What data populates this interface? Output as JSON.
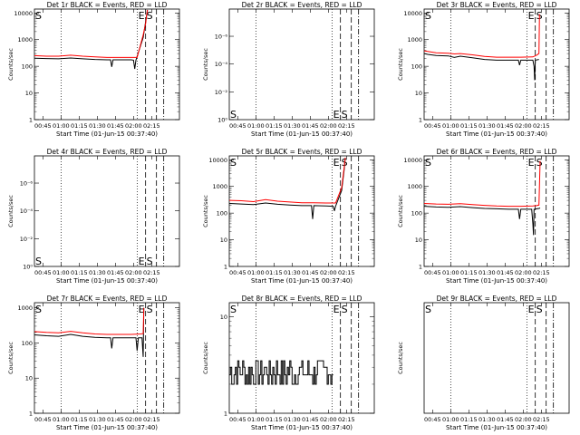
{
  "colors": {
    "events": "#000000",
    "lld": "#ff0000",
    "background": "#ffffff"
  },
  "x_tick_labels": [
    "00:45",
    "01:00",
    "01:15",
    "01:30",
    "01:45",
    "02:00",
    "02:15"
  ],
  "chart_data": [
    {
      "type": "line",
      "title": "Det 1r BLACK = Events, RED = LLD",
      "xlabel": "Start Time (01-Jun-15 00:37:40)",
      "ylabel": "Counts/sec",
      "yscale": "log",
      "ylim": [
        1,
        14000
      ],
      "ytick_labels": [
        "1",
        "10",
        "100",
        "1000",
        "10000"
      ],
      "ytick_values": [
        1,
        10,
        100,
        1000,
        10000
      ],
      "marker_labels": [
        "S",
        "E",
        "S"
      ],
      "label_pos": "top",
      "series": [
        {
          "color": "#000000",
          "x": [
            0,
            10,
            20,
            30,
            40,
            50,
            60,
            63,
            64,
            65,
            70,
            80,
            82,
            83,
            84,
            90,
            93,
            93.5
          ],
          "y": [
            200,
            195,
            190,
            205,
            190,
            180,
            175,
            175,
            95,
            175,
            175,
            175,
            170,
            80,
            170,
            1200,
            9000,
            13000
          ]
        },
        {
          "color": "#ff0000",
          "x": [
            0,
            10,
            20,
            30,
            40,
            50,
            60,
            70,
            80,
            83,
            85,
            90,
            92,
            93,
            93.5
          ],
          "y": [
            250,
            240,
            240,
            260,
            240,
            225,
            215,
            215,
            215,
            215,
            215,
            1500,
            4000,
            9000,
            13000
          ]
        }
      ]
    },
    {
      "type": "line",
      "title": "Det 2r BLACK = Events, RED = LLD",
      "xlabel": "Start Time (01-Jun-15 00:37:40)",
      "ylabel": "Counts/sec",
      "yscale": "log",
      "ylim": [
        1,
        1.1e-08
      ],
      "ytick_labels": [
        "10⁻¹⁰",
        "10⁻⁸",
        "10⁻⁶",
        "10⁻⁴",
        "10⁻²",
        "10⁰"
      ],
      "ytick_values": [
        1e-10,
        1e-08,
        1e-06,
        0.0001,
        0.01,
        1
      ],
      "marker_labels": [
        "S",
        "E",
        "S"
      ],
      "label_pos": "bottom",
      "series": []
    },
    {
      "type": "line",
      "title": "Det 3r BLACK = Events, RED = LLD",
      "xlabel": "Start Time (01-Jun-15 00:37:40)",
      "ylabel": "Counts/sec",
      "yscale": "log",
      "ylim": [
        1,
        14000
      ],
      "ytick_labels": [
        "1",
        "10",
        "100",
        "1000",
        "10000"
      ],
      "ytick_values": [
        1,
        10,
        100,
        1000,
        10000
      ],
      "marker_labels": [
        "S",
        "E",
        "S"
      ],
      "label_pos": "top",
      "series": [
        {
          "color": "#000000",
          "x": [
            0,
            3,
            10,
            20,
            25,
            30,
            40,
            50,
            60,
            70,
            78,
            79,
            80,
            85,
            90,
            91,
            91.5,
            92,
            95
          ],
          "y": [
            300,
            280,
            255,
            245,
            215,
            240,
            210,
            180,
            170,
            170,
            170,
            110,
            170,
            170,
            170,
            100,
            30,
            170,
            180
          ]
        },
        {
          "color": "#ff0000",
          "x": [
            0,
            10,
            20,
            25,
            30,
            40,
            50,
            60,
            70,
            80,
            90,
            93,
            95,
            95.5
          ],
          "y": [
            380,
            320,
            310,
            290,
            300,
            270,
            235,
            220,
            220,
            220,
            225,
            260,
            300,
            9000
          ]
        }
      ]
    },
    {
      "type": "line",
      "title": "Det 4r BLACK = Events, RED = LLD",
      "xlabel": "Start Time (01-Jun-15 00:37:40)",
      "ylabel": "Counts/sec",
      "yscale": "log",
      "ylim": [
        1,
        1.1e-08
      ],
      "ytick_labels": [
        "10⁻¹⁰",
        "10⁻⁸",
        "10⁻⁶",
        "10⁻⁴",
        "10⁻²",
        "10⁰"
      ],
      "ytick_values": [
        1e-10,
        1e-08,
        1e-06,
        0.0001,
        0.01,
        1
      ],
      "marker_labels": [
        "S",
        "E",
        "S"
      ],
      "label_pos": "bottom",
      "series": []
    },
    {
      "type": "line",
      "title": "Det 5r BLACK = Events, RED = LLD",
      "xlabel": "Start Time (01-Jun-15 00:37:40)",
      "ylabel": "Counts/sec",
      "yscale": "log",
      "ylim": [
        1,
        14000
      ],
      "ytick_labels": [
        "1",
        "10",
        "100",
        "1000",
        "10000"
      ],
      "ytick_values": [
        1,
        10,
        100,
        1000,
        10000
      ],
      "marker_labels": [
        "S",
        "E",
        "S"
      ],
      "label_pos": "top",
      "series": [
        {
          "color": "#000000",
          "x": [
            0,
            10,
            20,
            30,
            40,
            50,
            60,
            68,
            69,
            70,
            80,
            86,
            87,
            88,
            93,
            95,
            96
          ],
          "y": [
            230,
            220,
            210,
            240,
            215,
            200,
            190,
            190,
            60,
            190,
            185,
            180,
            120,
            180,
            700,
            4000,
            12000
          ]
        },
        {
          "color": "#ff0000",
          "x": [
            0,
            10,
            20,
            30,
            40,
            50,
            60,
            70,
            80,
            88,
            93,
            95,
            96
          ],
          "y": [
            300,
            290,
            270,
            320,
            280,
            260,
            245,
            245,
            240,
            240,
            900,
            5000,
            12000
          ]
        }
      ]
    },
    {
      "type": "line",
      "title": "Det 6r BLACK = Events, RED = LLD",
      "xlabel": "Start Time (01-Jun-15 00:37:40)",
      "ylabel": "Counts/sec",
      "yscale": "log",
      "ylim": [
        1,
        14000
      ],
      "ytick_labels": [
        "1",
        "10",
        "100",
        "1000",
        "10000"
      ],
      "ytick_values": [
        1,
        10,
        100,
        1000,
        10000
      ],
      "marker_labels": [
        "S",
        "E",
        "S"
      ],
      "label_pos": "top",
      "series": [
        {
          "color": "#000000",
          "x": [
            0,
            10,
            20,
            30,
            40,
            50,
            60,
            70,
            78,
            79,
            80,
            89,
            90,
            90.5,
            91,
            95,
            96
          ],
          "y": [
            180,
            170,
            165,
            175,
            160,
            150,
            145,
            140,
            140,
            60,
            140,
            140,
            40,
            15,
            140,
            150,
            155
          ]
        },
        {
          "color": "#ff0000",
          "x": [
            0,
            10,
            20,
            30,
            40,
            50,
            60,
            70,
            80,
            90,
            93,
            95,
            96
          ],
          "y": [
            230,
            220,
            215,
            225,
            210,
            195,
            185,
            180,
            180,
            185,
            190,
            200,
            9000
          ]
        }
      ]
    },
    {
      "type": "line",
      "title": "Det 7r BLACK = Events, RED = LLD",
      "xlabel": "Start Time (01-Jun-15 00:37:40)",
      "ylabel": "Counts/sec",
      "yscale": "log",
      "ylim": [
        1,
        1400
      ],
      "ytick_labels": [
        "1",
        "10",
        "100",
        "1000"
      ],
      "ytick_values": [
        1,
        10,
        100,
        1000
      ],
      "marker_labels": [
        "S",
        "E",
        "S"
      ],
      "label_pos": "top",
      "series": [
        {
          "color": "#000000",
          "x": [
            0,
            10,
            20,
            30,
            40,
            50,
            60,
            63,
            64,
            65,
            70,
            80,
            84,
            85,
            86,
            89,
            90,
            90.5
          ],
          "y": [
            170,
            160,
            155,
            175,
            155,
            145,
            140,
            140,
            70,
            140,
            140,
            140,
            140,
            60,
            140,
            140,
            40,
            1000
          ]
        },
        {
          "color": "#ff0000",
          "x": [
            0,
            10,
            20,
            30,
            40,
            50,
            60,
            70,
            80,
            88,
            90,
            90.5
          ],
          "y": [
            210,
            200,
            195,
            215,
            195,
            180,
            175,
            175,
            175,
            180,
            185,
            1000
          ]
        }
      ]
    },
    {
      "type": "line",
      "title": "Det 8r BLACK = Events, RED = LLD",
      "xlabel": "Start Time (01-Jun-15 00:37:40)",
      "ylabel": "Counts/sec",
      "yscale": "log",
      "ylim": [
        1,
        14
      ],
      "ytick_labels": [
        "1",
        "10"
      ],
      "ytick_values": [
        1,
        10
      ],
      "marker_labels": [
        "S",
        "E",
        "S"
      ],
      "label_pos": "top",
      "series": [
        {
          "color": "#000000",
          "style": "noise",
          "x0": 0,
          "x1": 85,
          "levels": [
            2,
            2.5,
            3,
            3.5
          ],
          "n": 85
        }
      ]
    },
    {
      "type": "line",
      "title": "Det 9r BLACK = Events, RED = LLD",
      "xlabel": "Start Time (01-Jun-15 00:37:40)",
      "ylabel": "Counts/sec",
      "yscale": "log",
      "ylim": [
        1,
        14
      ],
      "ytick_labels": [],
      "ytick_values": [],
      "marker_labels": [
        "S",
        "E",
        "S"
      ],
      "label_pos": "top",
      "series": []
    }
  ]
}
